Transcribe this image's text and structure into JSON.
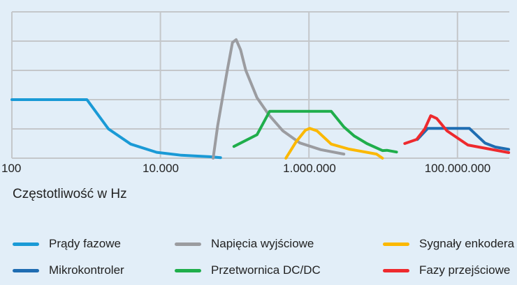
{
  "chart_data": {
    "type": "line",
    "title": "",
    "xlabel": "Częstotliwość w Hz",
    "ylabel": "",
    "x_scale": "log10",
    "xlim": [
      100,
      200000000
    ],
    "ylim": [
      0,
      5
    ],
    "x_ticks": [
      {
        "value": 100,
        "label": "100"
      },
      {
        "value": 10000,
        "label": "10.000"
      },
      {
        "value": 1000000,
        "label": "1.000.000"
      },
      {
        "value": 100000000,
        "label": "100.000.000"
      }
    ],
    "grid": true,
    "legend_position": "bottom",
    "series": [
      {
        "name": "Prądy fazowe",
        "color": "#1a9ad6",
        "points": [
          [
            2,
            2
          ],
          [
            3.01,
            2
          ],
          [
            3.3,
            1
          ],
          [
            3.6,
            0.48
          ],
          [
            3.95,
            0.2
          ],
          [
            4.28,
            0.1
          ],
          [
            4.66,
            0.05
          ],
          [
            4.81,
            0.02
          ]
        ]
      },
      {
        "name": "Napięcia wyjściowe",
        "color": "#9b9ca0",
        "points": [
          [
            4.71,
            0
          ],
          [
            4.77,
            1.1
          ],
          [
            4.9,
            3.0
          ],
          [
            4.97,
            3.95
          ],
          [
            5.02,
            4.05
          ],
          [
            5.08,
            3.7
          ],
          [
            5.15,
            3.0
          ],
          [
            5.3,
            2.07
          ],
          [
            5.46,
            1.48
          ],
          [
            5.65,
            0.93
          ],
          [
            5.88,
            0.52
          ],
          [
            6.16,
            0.29
          ],
          [
            6.47,
            0.14
          ]
        ]
      },
      {
        "name": "Sygnały enkodera",
        "color": "#fbb800",
        "points": [
          [
            5.69,
            0
          ],
          [
            5.83,
            0.57
          ],
          [
            5.95,
            0.95
          ],
          [
            6.01,
            1.02
          ],
          [
            6.11,
            0.93
          ],
          [
            6.3,
            0.48
          ],
          [
            6.54,
            0.31
          ],
          [
            6.91,
            0.14
          ],
          [
            6.99,
            0
          ]
        ]
      },
      {
        "name": "Mikrokontroler",
        "color": "#1f6db2",
        "points": [
          [
            7.46,
            0.64
          ],
          [
            7.6,
            1.02
          ],
          [
            7.95,
            1.02
          ],
          [
            8.16,
            1.02
          ],
          [
            8.37,
            0.52
          ],
          [
            8.51,
            0.38
          ],
          [
            8.69,
            0.3
          ]
        ]
      },
      {
        "name": "Przetwornica DC/DC",
        "color": "#1fae4b",
        "points": [
          [
            4.99,
            0.4
          ],
          [
            5.3,
            0.8
          ],
          [
            5.47,
            1.6
          ],
          [
            6.3,
            1.6
          ],
          [
            6.47,
            1.07
          ],
          [
            6.61,
            0.76
          ],
          [
            6.78,
            0.5
          ],
          [
            6.99,
            0.26
          ],
          [
            7.05,
            0.27
          ],
          [
            7.18,
            0.21
          ]
        ]
      },
      {
        "name": "Fazy przejściowe",
        "color": "#ee2a2e",
        "points": [
          [
            7.29,
            0.5
          ],
          [
            7.45,
            0.64
          ],
          [
            7.56,
            1
          ],
          [
            7.64,
            1.45
          ],
          [
            7.72,
            1.36
          ],
          [
            7.86,
            0.93
          ],
          [
            8.14,
            0.45
          ],
          [
            8.69,
            0.19
          ]
        ]
      }
    ]
  }
}
